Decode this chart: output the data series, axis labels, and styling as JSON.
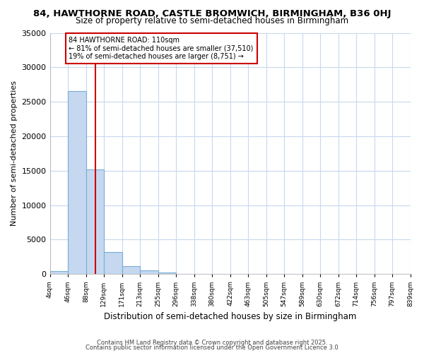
{
  "title": "84, HAWTHORNE ROAD, CASTLE BROMWICH, BIRMINGHAM, B36 0HJ",
  "subtitle": "Size of property relative to semi-detached houses in Birmingham",
  "xlabel": "Distribution of semi-detached houses by size in Birmingham",
  "ylabel": "Number of semi-detached properties",
  "bin_edges": [
    4,
    46,
    88,
    129,
    171,
    213,
    255,
    296,
    338,
    380,
    422,
    463,
    505,
    547,
    589,
    630,
    672,
    714,
    756,
    797,
    839
  ],
  "bar_heights": [
    400,
    26500,
    15200,
    3200,
    1200,
    500,
    200,
    0,
    0,
    0,
    0,
    0,
    0,
    0,
    0,
    0,
    0,
    0,
    0,
    0
  ],
  "bar_color": "#c5d8f0",
  "bar_edge_color": "#7aadd4",
  "property_size": 110,
  "red_line_color": "#cc0000",
  "annotation_text": "84 HAWTHORNE ROAD: 110sqm\n← 81% of semi-detached houses are smaller (37,510)\n19% of semi-detached houses are larger (8,751) →",
  "annotation_box_color": "#cc0000",
  "ylim": [
    0,
    35000
  ],
  "yticks": [
    0,
    5000,
    10000,
    15000,
    20000,
    25000,
    30000,
    35000
  ],
  "fig_background_color": "#ffffff",
  "axes_background_color": "#ffffff",
  "grid_color": "#c8d8ee",
  "footer_line1": "Contains HM Land Registry data © Crown copyright and database right 2025.",
  "footer_line2": "Contains public sector information licensed under the Open Government Licence 3.0"
}
